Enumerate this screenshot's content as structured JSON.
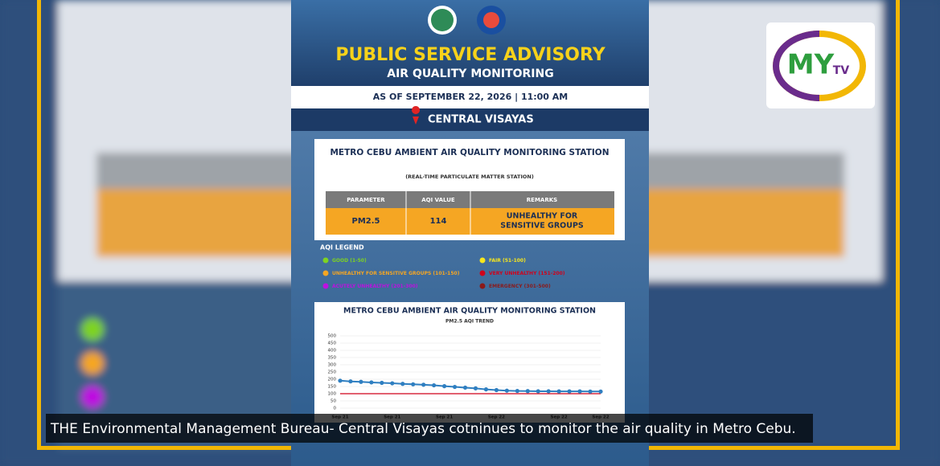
{
  "logo": {
    "text": "MY",
    "suffix": "TV"
  },
  "poster": {
    "title": "PUBLIC SERVICE ADVISORY",
    "subtitle": "AIR QUALITY MONITORING",
    "as_of": "AS OF SEPTEMBER 22, 2026 | 11:00 AM",
    "region": "CENTRAL VISAYAS"
  },
  "station": {
    "title": "METRO CEBU AMBIENT AIR QUALITY MONITORING STATION",
    "subtitle": "(REAL-TIME PARTICULATE MATTER STATION)",
    "table": {
      "headers": [
        "PARAMETER",
        "AQI VALUE",
        "REMARKS"
      ],
      "rows": [
        [
          "PM2.5",
          114,
          [
            "UNHEALTHY FOR",
            "SENSITIVE GROUPS"
          ]
        ]
      ]
    }
  },
  "legend": {
    "title": "AQI LEGEND",
    "items": [
      {
        "label": "GOOD (1-50)",
        "color": "#7ed321"
      },
      {
        "label": "FAIR (51-100)",
        "color": "#f8e71c"
      },
      {
        "label": "UNHEALTHY FOR SENSITIVE GROUPS (101-150)",
        "color": "#f5a623"
      },
      {
        "label": "VERY UNHEALTHY (151-200)",
        "color": "#d0021b"
      },
      {
        "label": "ACUTELY UNHEALTHY (201-300)",
        "color": "#bd10e0"
      },
      {
        "label": "EMERGENCY (301-500)",
        "color": "#8b1a1a"
      }
    ]
  },
  "trend_chart": {
    "type": "line",
    "title": "METRO CEBU AMBIENT AIR QUALITY MONITORING STATION",
    "subtitle": "PM2.5 AQI TREND",
    "categories": [
      "Sep 21",
      null,
      null,
      null,
      null,
      "Sep 21",
      null,
      null,
      null,
      null,
      "Sep 21",
      null,
      null,
      null,
      null,
      "Sep 22",
      null,
      null,
      null,
      null,
      null,
      "Sep 22",
      null,
      null,
      null,
      "Sep 22"
    ],
    "values": [
      190,
      185,
      182,
      178,
      175,
      172,
      168,
      165,
      162,
      158,
      152,
      147,
      142,
      137,
      130,
      125,
      121,
      119,
      118,
      117,
      117,
      116,
      116,
      116,
      115,
      115
    ],
    "color": "#2f7fc1",
    "threshold": {
      "value": 100,
      "color": "#d0021b"
    },
    "ylim": [
      0,
      500
    ],
    "yticks": [
      0,
      50,
      100,
      150,
      200,
      250,
      300,
      350,
      400,
      450,
      500
    ],
    "grid": true
  },
  "caption": "THE Environmental Management Bureau- Central Visayas cotninues to monitor the air quality in Metro Cebu."
}
